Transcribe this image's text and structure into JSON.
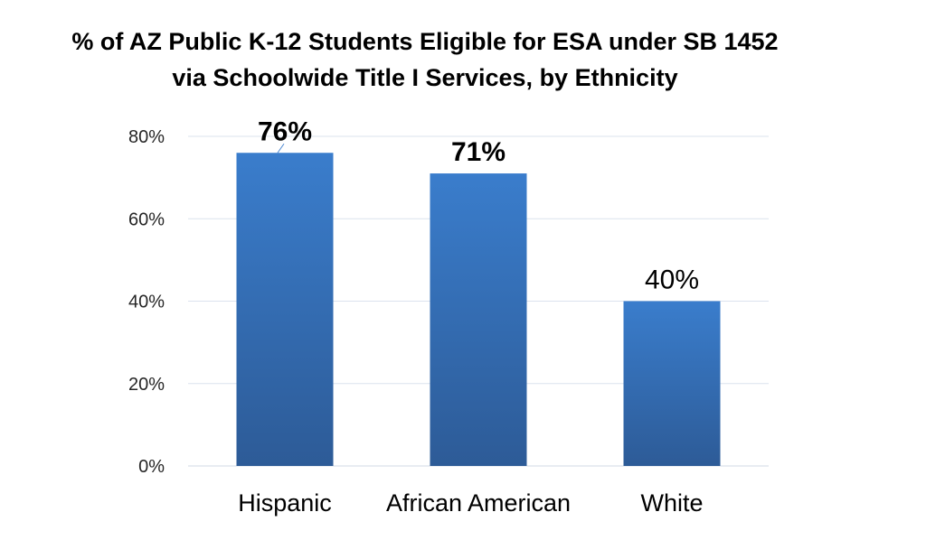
{
  "chart_data": {
    "type": "bar",
    "title_lines": [
      "% of AZ Public K-12 Students Eligible for ESA under SB 1452",
      "via Schoolwide Title I Services, by Ethnicity"
    ],
    "categories": [
      "Hispanic",
      "African American",
      "White"
    ],
    "values": [
      76,
      71,
      40
    ],
    "data_labels": [
      "76%",
      "71%",
      "40%"
    ],
    "data_label_bold": [
      true,
      true,
      false
    ],
    "y_ticks": [
      0,
      20,
      40,
      60,
      80
    ],
    "y_tick_labels": [
      "0%",
      "20%",
      "40%",
      "60%",
      "80%"
    ],
    "ylim": [
      0,
      80
    ],
    "xlabel": "",
    "ylabel": "",
    "grid": true,
    "legend": false,
    "colors": {
      "bar_top": "#3a7dcc",
      "bar_bottom": "#2d5b97"
    }
  }
}
